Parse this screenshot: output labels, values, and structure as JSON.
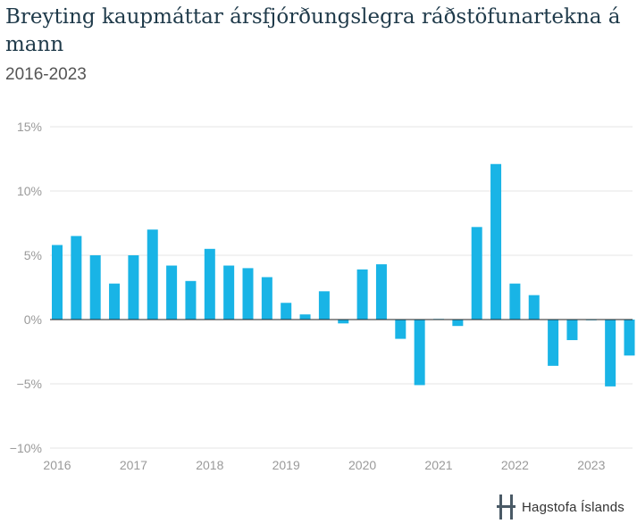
{
  "header": {
    "title": "Breyting kaupmáttar ársfjórðungslegra ráðstöfunartekna á mann",
    "subtitle": "2016-2023"
  },
  "brand": {
    "name": "Hagstofa Íslands",
    "logo_icon": "hagstofa-logo-icon",
    "logo_color": "#4a5a66"
  },
  "colors": {
    "bar": "#19b4e6",
    "grid": "#e6e6e6",
    "zero_line": "#222222",
    "tick_text": "#9a9a9a"
  },
  "chart_data": {
    "type": "bar",
    "title": "Breyting kaupmáttar ársfjórðungslegra ráðstöfunartekna á mann",
    "subtitle": "2016-2023",
    "xlabel": "",
    "ylabel": "",
    "ylim": [
      -10,
      15
    ],
    "yticks": [
      15,
      10,
      5,
      0,
      -5,
      -10
    ],
    "ytick_labels": [
      "15%",
      "10%",
      "5%",
      "0%",
      "−5%",
      "−10%"
    ],
    "xtick_labels": [
      "2016",
      "2017",
      "2018",
      "2019",
      "2020",
      "2021",
      "2022",
      "2023"
    ],
    "grid": true,
    "legend": "none",
    "categories": [
      "2016Q1",
      "2016Q2",
      "2016Q3",
      "2016Q4",
      "2017Q1",
      "2017Q2",
      "2017Q3",
      "2017Q4",
      "2018Q1",
      "2018Q2",
      "2018Q3",
      "2018Q4",
      "2019Q1",
      "2019Q2",
      "2019Q3",
      "2019Q4",
      "2020Q1",
      "2020Q2",
      "2020Q3",
      "2020Q4",
      "2021Q1",
      "2021Q2",
      "2021Q3",
      "2021Q4",
      "2022Q1",
      "2022Q2",
      "2022Q3",
      "2022Q4",
      "2023Q1",
      "2023Q2",
      "2023Q3"
    ],
    "values": [
      5.8,
      6.5,
      5.0,
      2.8,
      5.0,
      7.0,
      4.2,
      3.0,
      5.5,
      4.2,
      4.0,
      3.3,
      1.3,
      0.4,
      2.2,
      -0.3,
      3.9,
      4.3,
      -1.5,
      -5.1,
      0.05,
      -0.5,
      7.2,
      12.1,
      2.8,
      1.9,
      -3.6,
      -1.6,
      -0.05,
      -5.2,
      -2.8
    ]
  }
}
